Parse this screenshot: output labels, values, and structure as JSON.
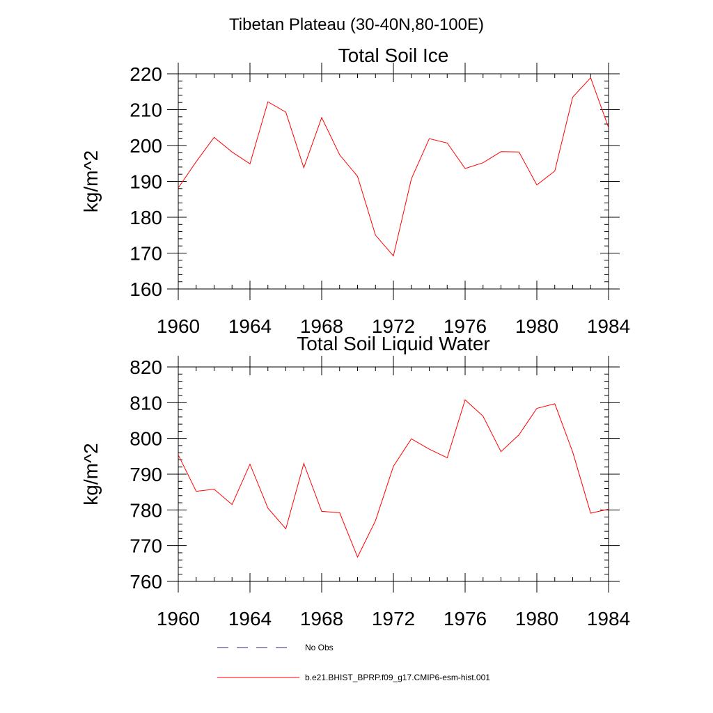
{
  "page_title": "Tibetan Plateau (30-40N,80-100E)",
  "colors": {
    "model": "#ff0000",
    "obs": "#2a2a6e",
    "axis": "#000000"
  },
  "legend": {
    "items": [
      {
        "label": "No Obs",
        "style": "dashed",
        "color": "#2a2a6e"
      },
      {
        "label": "b.e21.BHIST_BPRP.f09_g17.CMIP6-esm-hist.001",
        "style": "solid",
        "color": "#ff0000"
      }
    ]
  },
  "chart_data": [
    {
      "type": "line",
      "title": "Total Soil Ice",
      "xlabel": "",
      "ylabel": "kg/m^2",
      "xlim": [
        1960,
        1984
      ],
      "ylim": [
        160,
        220
      ],
      "x_ticks": [
        1960,
        1964,
        1968,
        1972,
        1976,
        1980,
        1984
      ],
      "y_ticks": [
        160,
        170,
        180,
        190,
        200,
        210,
        220
      ],
      "x_minor_step": 1,
      "y_minor_step": 2,
      "grid": false,
      "series": [
        {
          "color": "#ff0000",
          "x": [
            1960,
            1961,
            1962,
            1963,
            1964,
            1965,
            1966,
            1967,
            1968,
            1969,
            1970,
            1971,
            1972,
            1973,
            1974,
            1975,
            1976,
            1977,
            1978,
            1979,
            1980,
            1981,
            1982,
            1983,
            1984
          ],
          "y": [
            188.2,
            195.5,
            202.3,
            198.2,
            194.9,
            212.2,
            209.3,
            193.8,
            207.8,
            197.4,
            191.4,
            175.0,
            169.2,
            190.7,
            201.9,
            200.7,
            193.6,
            195.2,
            198.3,
            198.2,
            189.0,
            192.9,
            213.5,
            218.9,
            205.0
          ]
        }
      ]
    },
    {
      "type": "line",
      "title": "Total Soil Liquid Water",
      "xlabel": "",
      "ylabel": "kg/m^2",
      "xlim": [
        1960,
        1984
      ],
      "ylim": [
        760,
        820
      ],
      "x_ticks": [
        1960,
        1964,
        1968,
        1972,
        1976,
        1980,
        1984
      ],
      "y_ticks": [
        760,
        770,
        780,
        790,
        800,
        810,
        820
      ],
      "x_minor_step": 1,
      "y_minor_step": 2,
      "grid": false,
      "series": [
        {
          "color": "#ff0000",
          "x": [
            1960,
            1961,
            1962,
            1963,
            1964,
            1965,
            1966,
            1967,
            1968,
            1969,
            1970,
            1971,
            1972,
            1973,
            1974,
            1975,
            1976,
            1977,
            1978,
            1979,
            1980,
            1981,
            1982,
            1983,
            1984
          ],
          "y": [
            795.4,
            785.2,
            785.8,
            781.5,
            792.8,
            780.5,
            774.7,
            793.0,
            779.6,
            779.2,
            766.8,
            777.0,
            792.2,
            799.9,
            797.0,
            794.6,
            810.8,
            806.2,
            796.3,
            801.0,
            808.4,
            809.7,
            796.2,
            779.1,
            780.2
          ]
        }
      ]
    }
  ]
}
